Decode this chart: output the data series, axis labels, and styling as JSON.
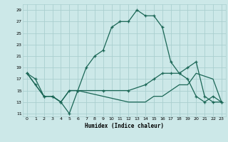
{
  "xlabel": "Humidex (Indice chaleur)",
  "bg_color": "#cce8e8",
  "grid_color": "#aacfcf",
  "line_color": "#1a6655",
  "xlim": [
    -0.5,
    23.5
  ],
  "ylim": [
    10.5,
    30
  ],
  "xticks": [
    0,
    1,
    2,
    3,
    4,
    5,
    6,
    7,
    8,
    9,
    10,
    11,
    12,
    13,
    14,
    15,
    16,
    17,
    18,
    19,
    20,
    21,
    22,
    23
  ],
  "yticks": [
    11,
    13,
    15,
    17,
    19,
    21,
    23,
    25,
    27,
    29
  ],
  "line1_x": [
    0,
    1,
    2,
    3,
    4,
    5,
    6,
    7,
    8,
    9,
    10,
    11,
    12,
    13,
    14,
    15,
    16,
    17,
    18,
    19,
    20,
    21,
    22,
    23
  ],
  "line1_y": [
    18,
    16,
    14,
    14,
    13,
    11,
    15,
    19,
    21,
    22,
    26,
    27,
    27,
    29,
    28,
    28,
    26,
    20,
    18,
    17,
    14,
    13,
    14,
    13
  ],
  "line2_x": [
    0,
    1,
    2,
    3,
    4,
    5,
    6,
    9,
    12,
    14,
    15,
    16,
    17,
    18,
    19,
    20,
    21,
    22,
    23
  ],
  "line2_y": [
    18,
    17,
    14,
    14,
    13,
    15,
    15,
    15,
    15,
    16,
    17,
    18,
    18,
    18,
    19,
    20,
    14,
    13,
    13
  ],
  "line3_x": [
    0,
    2,
    3,
    4,
    5,
    6,
    9,
    12,
    14,
    15,
    16,
    17,
    18,
    19,
    20,
    22,
    23
  ],
  "line3_y": [
    18,
    14,
    14,
    13,
    15,
    15,
    14,
    13,
    13,
    14,
    14,
    15,
    16,
    16,
    18,
    17,
    13
  ]
}
